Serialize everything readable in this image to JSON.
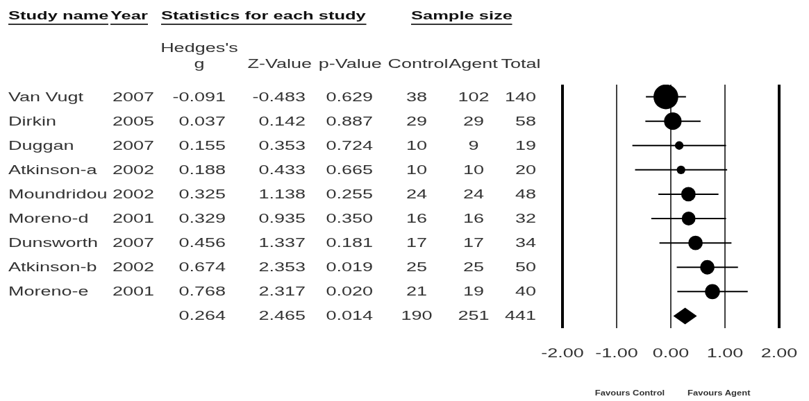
{
  "chart_data": [
    {
      "type": "other",
      "annotations": [
        "Study name",
        "Year",
        "Statistics for each study",
        "Sample size",
        "Hedges's g",
        "Z-Value",
        "p-Value",
        "Control",
        "Agent",
        "Total",
        "Van Vugt",
        "2007",
        "-0.091",
        "-0.483",
        "0.629",
        "38",
        "102",
        "140",
        "Dirkin",
        "2005",
        "0.037",
        "0.142",
        "0.887",
        "29",
        "29",
        "58",
        "Duggan",
        "2007",
        "0.155",
        "0.353",
        "0.724",
        "10",
        "9",
        "19",
        "Atkinson-a",
        "2002",
        "0.188",
        "0.433",
        "0.665",
        "10",
        "10",
        "20",
        "Moundridou",
        "2002",
        "0.325",
        "1.138",
        "0.255",
        "24",
        "24",
        "48",
        "Moreno-d",
        "2001",
        "0.329",
        "0.935",
        "0.350",
        "16",
        "16",
        "32",
        "Dunsworth",
        "2007",
        "0.456",
        "1.337",
        "0.181",
        "17",
        "17",
        "34",
        "Atkinson-b",
        "2002",
        "0.674",
        "2.353",
        "0.019",
        "25",
        "25",
        "50",
        "Moreno-e",
        "2001",
        "0.768",
        "2.317",
        "0.020",
        "21",
        "19",
        "40",
        "0.264",
        "2.465",
        "0.014",
        "190",
        "251",
        "441"
      ]
    },
    {
      "type": "bubble",
      "orientation": "horizontal",
      "categories": [
        null,
        null,
        null,
        null,
        null,
        null,
        null,
        null,
        null,
        null
      ],
      "series": [
        {
          "type": "bubble",
          "marker": "circle",
          "color": "#000000",
          "values": [
            -0.091,
            0.037,
            0.155,
            0.188,
            0.325,
            0.329,
            0.456,
            0.674,
            0.768,
            null
          ],
          "sizes": [
            1,
            0.5,
            0.12,
            0.12,
            0.34,
            0.31,
            0.34,
            0.34,
            0.37,
            null
          ],
          "errors": [
            [
              -0.46,
              0.28
            ],
            [
              -0.47,
              0.55
            ],
            [
              -0.71,
              1.02
            ],
            [
              -0.66,
              1.04
            ],
            [
              -0.23,
              0.88
            ],
            [
              -0.36,
              1.02
            ],
            [
              -0.21,
              1.12
            ],
            [
              0.11,
              1.24
            ],
            [
              0.12,
              1.42
            ],
            null
          ]
        },
        {
          "type": "scatter",
          "marker": "diamond",
          "color": "#000000",
          "values": [
            null,
            null,
            null,
            null,
            null,
            null,
            null,
            null,
            null,
            0.264
          ]
        }
      ],
      "xlim": [
        -2,
        2
      ],
      "xticks": [
        {
          "value": -2,
          "label": "-2.00"
        },
        {
          "value": -1,
          "label": "-1.00"
        },
        {
          "value": 0,
          "label": "0.00"
        },
        {
          "value": 1,
          "label": "1.00"
        },
        {
          "value": 2,
          "label": "2.00"
        }
      ],
      "grid": "x",
      "tick_labels": "x",
      "annotations": [
        "Favours Control",
        "Favours Agent"
      ]
    }
  ]
}
